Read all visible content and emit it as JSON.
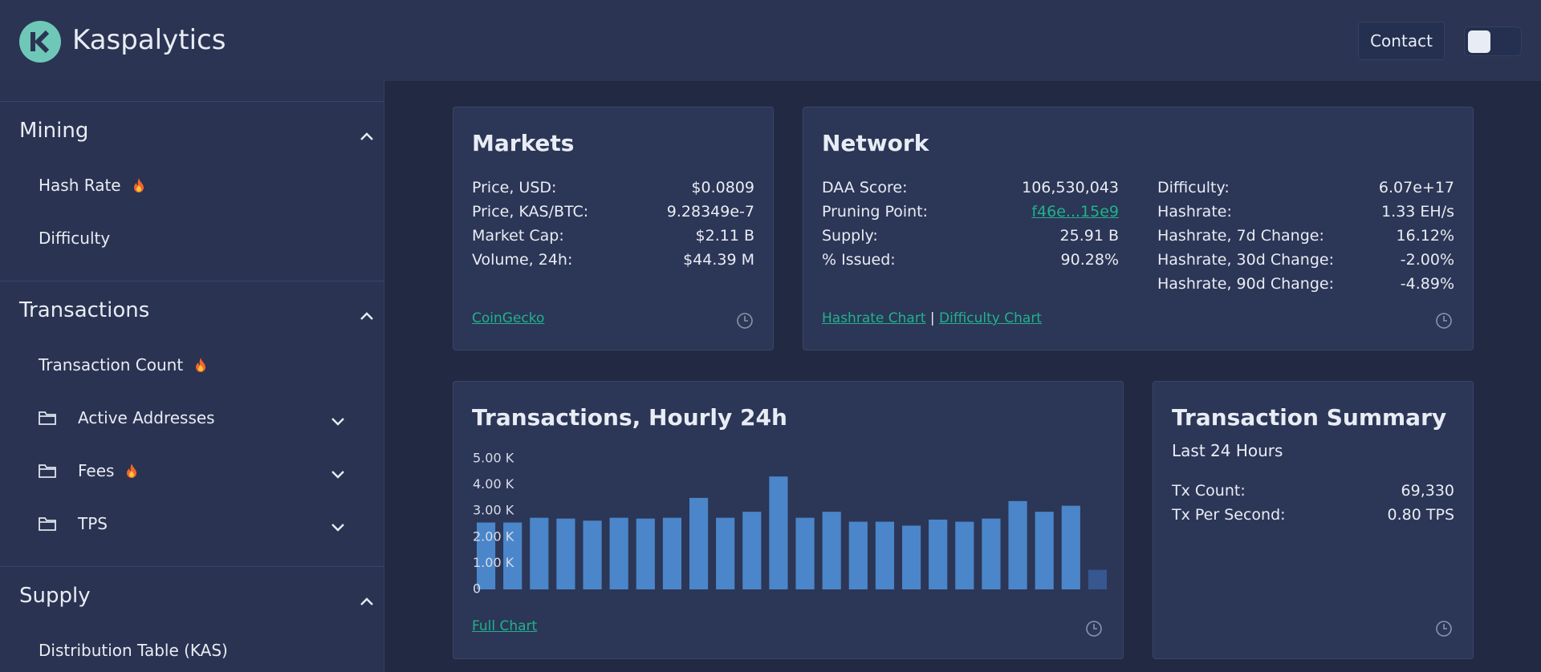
{
  "header": {
    "brand": "Kaspalytics",
    "contact": "Contact"
  },
  "sidebar": {
    "sections": [
      {
        "title": "Mining",
        "items": [
          {
            "label": "Hash Rate",
            "hot": true
          },
          {
            "label": "Difficulty"
          }
        ]
      },
      {
        "title": "Transactions",
        "items": [
          {
            "label": "Transaction Count",
            "hot": true
          },
          {
            "label": "Active Addresses",
            "folder": true
          },
          {
            "label": "Fees",
            "folder": true,
            "hot": true
          },
          {
            "label": "TPS",
            "folder": true
          }
        ]
      },
      {
        "title": "Supply",
        "items": [
          {
            "label": "Distribution Table (KAS)"
          }
        ]
      }
    ]
  },
  "markets": {
    "title": "Markets",
    "rows": [
      {
        "label": "Price, USD:",
        "value": "$0.0809"
      },
      {
        "label": "Price, KAS/BTC:",
        "value": "9.28349e-7"
      },
      {
        "label": "Market Cap:",
        "value": "$2.11 B"
      },
      {
        "label": "Volume, 24h:",
        "value": "$44.39 M"
      }
    ],
    "link": "CoinGecko"
  },
  "network": {
    "title": "Network",
    "left": [
      {
        "label": "DAA Score:",
        "value": "106,530,043"
      },
      {
        "label": "Pruning Point:",
        "value": "f46e...15e9",
        "link": true
      },
      {
        "label": "Supply:",
        "value": "25.91 B"
      },
      {
        "label": "% Issued:",
        "value": "90.28%"
      }
    ],
    "right": [
      {
        "label": "Difficulty:",
        "value": "6.07e+17"
      },
      {
        "label": "Hashrate:",
        "value": "1.33 EH/s"
      },
      {
        "label": "Hashrate, 7d Change:",
        "value": "16.12%"
      },
      {
        "label": "Hashrate, 30d Change:",
        "value": "-2.00%"
      },
      {
        "label": "Hashrate, 90d Change:",
        "value": "-4.89%"
      }
    ],
    "links": [
      "Hashrate Chart",
      "Difficulty Chart"
    ],
    "separator": "|"
  },
  "chart_data": {
    "type": "bar",
    "title": "Transactions, Hourly 24h",
    "categories": [
      null,
      null,
      null,
      null,
      null,
      null,
      null,
      null,
      null,
      null,
      null,
      null,
      null,
      null,
      null,
      null,
      null,
      null,
      null,
      null,
      null,
      null,
      null,
      null
    ],
    "values": [
      2560,
      2560,
      2740,
      2710,
      2630,
      2740,
      2710,
      2740,
      3500,
      2740,
      2970,
      4320,
      2740,
      2970,
      2590,
      2590,
      2440,
      2670,
      2590,
      2710,
      3380,
      2970,
      3200,
      750
    ],
    "colors": [
      "#4a86c9",
      "#4a86c9",
      "#4a86c9",
      "#4a86c9",
      "#4a86c9",
      "#4a86c9",
      "#4a86c9",
      "#4a86c9",
      "#4a86c9",
      "#4a86c9",
      "#4a86c9",
      "#4a86c9",
      "#4a86c9",
      "#4a86c9",
      "#4a86c9",
      "#4a86c9",
      "#4a86c9",
      "#4a86c9",
      "#4a86c9",
      "#4a86c9",
      "#4a86c9",
      "#4a86c9",
      "#4a86c9",
      "#36578f"
    ],
    "ylim": [
      0,
      5000
    ],
    "yticks": [
      0,
      {
        "value": 1000,
        "label": "1.00 K"
      },
      {
        "value": 2000,
        "label": "2.00 K"
      },
      {
        "value": 3000,
        "label": "3.00 K"
      },
      {
        "value": 4000,
        "label": "4.00 K"
      },
      {
        "value": 5000,
        "label": "5.00 K"
      }
    ],
    "grid": false,
    "link": "Full Chart"
  },
  "summary": {
    "title": "Transaction Summary",
    "subtitle": "Last 24 Hours",
    "rows": [
      {
        "label": "Tx Count:",
        "value": "69,330"
      },
      {
        "label": "Tx Per Second:",
        "value": "0.80 TPS"
      }
    ]
  }
}
